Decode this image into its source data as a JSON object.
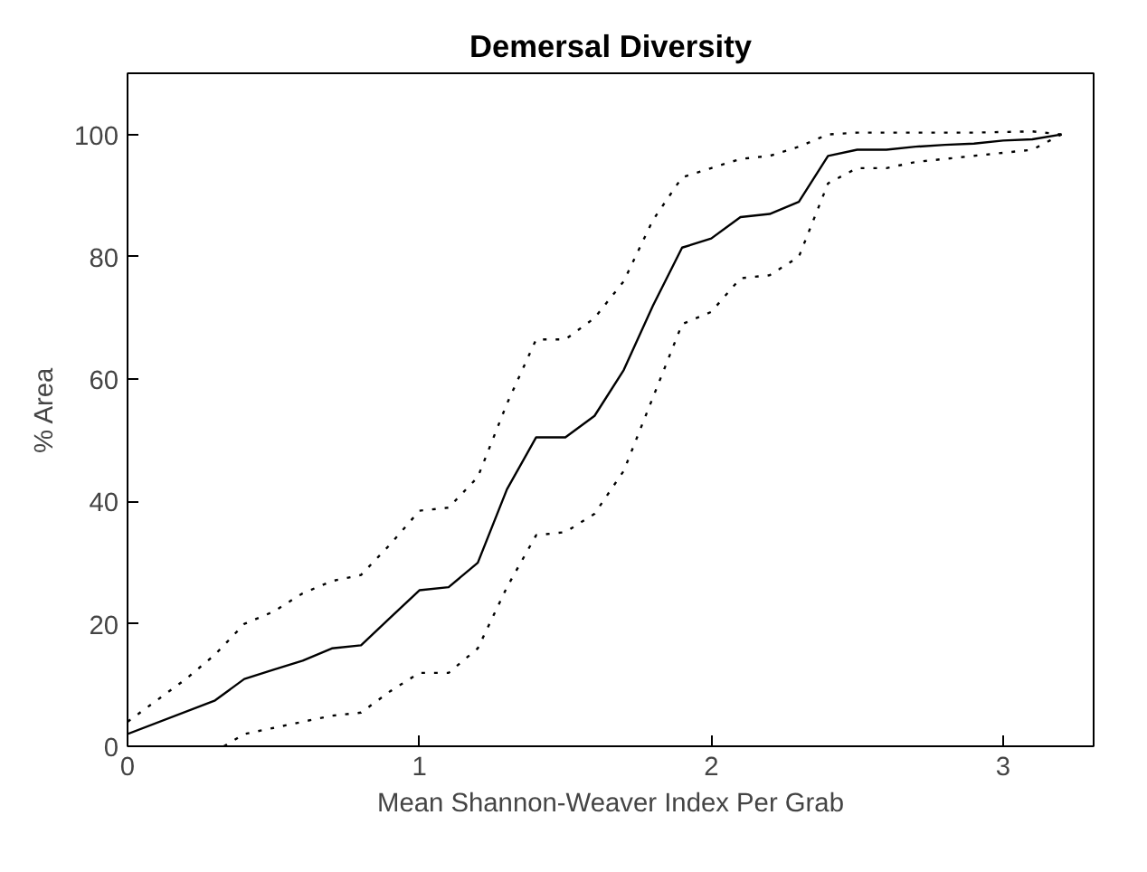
{
  "chart_data": {
    "type": "line",
    "title": "Demersal Diversity",
    "xlabel": "Mean Shannon-Weaver Index Per Grab",
    "ylabel": "% Area",
    "xlim": [
      0,
      3.31
    ],
    "ylim": [
      0,
      110
    ],
    "xticks": [
      0,
      1,
      2,
      3
    ],
    "yticks": [
      0,
      20,
      40,
      60,
      80,
      100
    ],
    "grid": false,
    "marker": "none",
    "series": [
      {
        "color": "#000000",
        "line_style": "solid",
        "x": [
          0,
          0.3,
          0.4,
          0.5,
          0.6,
          0.7,
          0.8,
          0.9,
          1.0,
          1.1,
          1.2,
          1.3,
          1.4,
          1.5,
          1.6,
          1.7,
          1.8,
          1.9,
          2.0,
          2.1,
          2.2,
          2.3,
          2.4,
          2.5,
          2.6,
          2.7,
          2.8,
          2.9,
          3.0,
          3.1,
          3.2
        ],
        "values": [
          2,
          7.5,
          11,
          12.5,
          14,
          16,
          16.5,
          21,
          25.5,
          26,
          30,
          42,
          50.5,
          50.5,
          54,
          61.5,
          72,
          81.5,
          83,
          86.5,
          87,
          89,
          96.5,
          97.5,
          97.5,
          98,
          98.3,
          98.5,
          99,
          99.2,
          100
        ]
      },
      {
        "color": "#000000",
        "line_style": "dotted",
        "x": [
          0,
          0.1,
          0.2,
          0.3,
          0.4,
          0.5,
          0.6,
          0.7,
          0.8,
          0.9,
          1.0,
          1.1,
          1.2,
          1.3,
          1.4,
          1.5,
          1.6,
          1.7,
          1.8,
          1.9,
          2.0,
          2.1,
          2.2,
          2.3,
          2.4,
          2.5,
          2.6,
          2.7,
          2.8,
          2.9,
          3.0,
          3.1,
          3.2
        ],
        "values": [
          4,
          7.5,
          11,
          15,
          20,
          22,
          25,
          27,
          28,
          33,
          38.5,
          39,
          44,
          56,
          66.5,
          66.5,
          70,
          76,
          86,
          93,
          94.5,
          96,
          96.5,
          98,
          100,
          100.3,
          100.3,
          100.3,
          100.3,
          100.3,
          100.4,
          100.5,
          100
        ]
      },
      {
        "color": "#000000",
        "line_style": "dotted",
        "x": [
          0.33,
          0.4,
          0.5,
          0.6,
          0.7,
          0.8,
          0.9,
          1.0,
          1.1,
          1.2,
          1.3,
          1.4,
          1.5,
          1.6,
          1.7,
          1.8,
          1.9,
          2.0,
          2.1,
          2.2,
          2.3,
          2.4,
          2.5,
          2.6,
          2.7,
          2.8,
          2.9,
          3.0,
          3.1,
          3.2
        ],
        "values": [
          0,
          2,
          3,
          4,
          5,
          5.5,
          9,
          12,
          12,
          16,
          26,
          34.5,
          35,
          38,
          45,
          57,
          69,
          71,
          76.5,
          77,
          80,
          92,
          94.5,
          94.5,
          95.5,
          96,
          96.5,
          97,
          97.5,
          100
        ]
      }
    ]
  }
}
